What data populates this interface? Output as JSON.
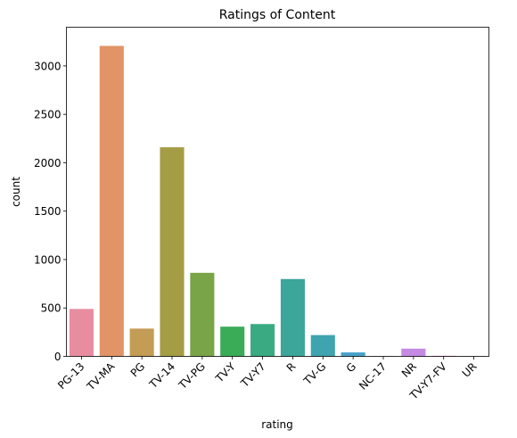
{
  "chart_data": {
    "type": "bar",
    "title": "Ratings of Content",
    "xlabel": "rating",
    "ylabel": "count",
    "categories": [
      "PG-13",
      "TV-MA",
      "PG",
      "TV-14",
      "TV-PG",
      "TV-Y",
      "TV-Y7",
      "R",
      "TV-G",
      "G",
      "NC-17",
      "NR",
      "TV-Y7-FV",
      "UR"
    ],
    "values": [
      490,
      3207,
      287,
      2160,
      863,
      307,
      334,
      799,
      220,
      41,
      3,
      80,
      6,
      3
    ],
    "colors": [
      "#e88da0",
      "#e29467",
      "#c39c55",
      "#a59d45",
      "#79a548",
      "#3aac57",
      "#3aaa82",
      "#3ca69a",
      "#3fa4b0",
      "#48a1cc",
      "#8b97e4",
      "#c58ae4",
      "#e486d1",
      "#e88bb5"
    ],
    "ylim": [
      0,
      3400
    ],
    "yticks": [
      0,
      500,
      1000,
      1500,
      2000,
      2500,
      3000
    ],
    "grid": false,
    "legend": "none"
  }
}
